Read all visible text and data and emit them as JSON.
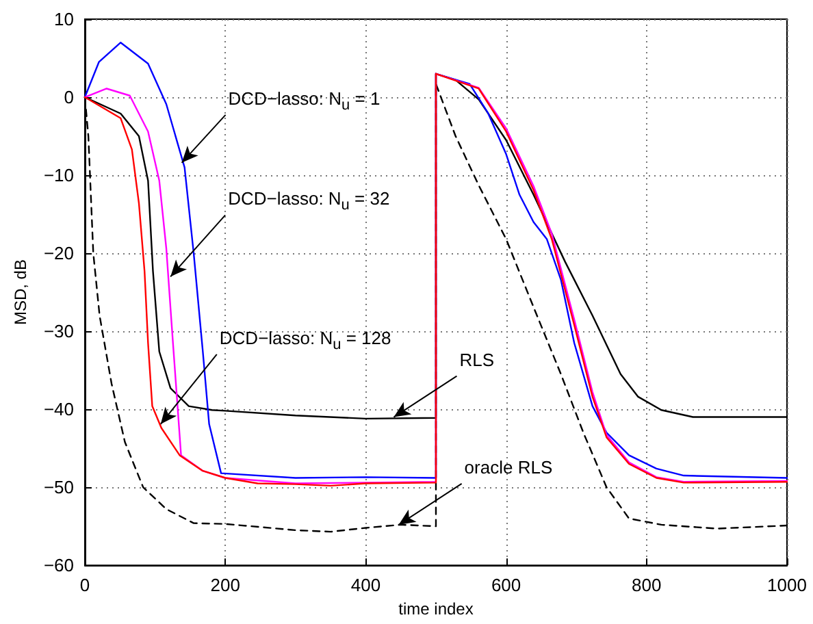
{
  "chart_data": {
    "type": "line",
    "xlabel": "time index",
    "ylabel": "MSD, dB",
    "xlim": [
      0,
      1000
    ],
    "xticks": [
      0,
      200,
      400,
      600,
      800,
      1000
    ],
    "ylim": [
      -60,
      10
    ],
    "yticks": [
      -60,
      -50,
      -40,
      -30,
      -20,
      -10,
      0,
      10
    ],
    "grid": true,
    "marker": "none",
    "series": [
      {
        "color": "#000000",
        "line_style": "dashed",
        "x": [
          0,
          5,
          12,
          21,
          38,
          57,
          83,
          116,
          155,
          200,
          300,
          350,
          400,
          450,
          500,
          500,
          528,
          561,
          600,
          639,
          678,
          710,
          743,
          775,
          821,
          900,
          1000
        ],
        "values": [
          0,
          -5,
          -20,
          -28,
          -36.7,
          -44.2,
          -50,
          -52.8,
          -54.6,
          -54.7,
          -55.5,
          -55.7,
          -55.2,
          -54.8,
          -55,
          1.7,
          -5,
          -11.3,
          -18.2,
          -26.9,
          -35.5,
          -43,
          -50,
          -54,
          -54.8,
          -55.3,
          -54.9
        ]
      },
      {
        "color": "#000000",
        "line_style": "solid",
        "x": [
          0,
          51,
          77,
          90,
          97,
          106,
          122,
          148,
          181,
          200,
          300,
          400,
          500,
          500,
          528,
          561,
          600,
          639,
          684,
          723,
          763,
          788,
          821,
          866,
          1000
        ],
        "values": [
          0,
          -2.1,
          -5,
          -10.7,
          -22.3,
          -32.6,
          -37.3,
          -39.6,
          -40.1,
          -40.2,
          -40.8,
          -41.2,
          -41.1,
          3,
          2.2,
          -0.3,
          -5.5,
          -12.5,
          -21.1,
          -28,
          -35.5,
          -38.4,
          -40.1,
          -41,
          -41
        ]
      },
      {
        "color": "#0000ff",
        "line_style": "solid",
        "x": [
          0,
          20,
          51,
          90,
          116,
          142,
          155,
          168,
          177,
          194,
          300,
          400,
          500,
          500,
          548,
          574,
          600,
          619,
          639,
          658,
          678,
          697,
          723,
          743,
          775,
          814,
          853,
          1000
        ],
        "values": [
          0,
          4.5,
          7,
          4.3,
          -0.9,
          -9,
          -20,
          -32.6,
          -41.9,
          -48.2,
          -48.8,
          -48.7,
          -48.8,
          3,
          1.7,
          -2,
          -7.3,
          -12.5,
          -16,
          -18.2,
          -23.4,
          -31.5,
          -39.6,
          -43,
          -45.9,
          -47.6,
          -48.5,
          -48.8
        ]
      },
      {
        "color": "#ff00ff",
        "line_style": "solid",
        "x": [
          0,
          31,
          64,
          90,
          106,
          116,
          125,
          132,
          137,
          168,
          200,
          300,
          400,
          500,
          500,
          561,
          600,
          639,
          665,
          697,
          723,
          743,
          775,
          814,
          853,
          1000
        ],
        "values": [
          0,
          1.1,
          0.2,
          -4.4,
          -10.7,
          -19.4,
          -30.9,
          -39.6,
          -45.9,
          -47.9,
          -48.8,
          -49.5,
          -49.4,
          -49.3,
          3,
          1.2,
          -4,
          -11.4,
          -17.5,
          -28.5,
          -37.8,
          -43.3,
          -46.8,
          -48.7,
          -49.3,
          -49.2
        ]
      },
      {
        "color": "#ff0000",
        "line_style": "solid",
        "x": [
          0,
          51,
          67,
          77,
          85,
          90,
          96,
          109,
          135,
          168,
          200,
          246,
          300,
          350,
          400,
          500,
          500,
          561,
          600,
          639,
          665,
          697,
          723,
          743,
          775,
          814,
          853,
          1000
        ],
        "values": [
          0,
          -2.7,
          -6.7,
          -13.6,
          -22.3,
          -31.5,
          -39.6,
          -42.4,
          -45.9,
          -47.9,
          -48.8,
          -49.5,
          -49.6,
          -49.8,
          -49.5,
          -49.4,
          3,
          1.1,
          -4.4,
          -11.9,
          -18.2,
          -29.2,
          -38.4,
          -43.6,
          -47,
          -48.8,
          -49.4,
          -49.3
        ]
      }
    ],
    "annotations": [
      {
        "text": "DCD−lasso: N$_{u}$ = 1",
        "x": 138,
        "y": -8.4
      },
      {
        "text": "DCD−lasso: N$_{u}$ = 32",
        "x": 122,
        "y": -23
      },
      {
        "text": "DCD−lasso: N$_{u}$ = 128",
        "x": 108,
        "y": -41.9
      },
      {
        "text": "RLS",
        "x": 440,
        "y": -41
      },
      {
        "text": "oracle RLS",
        "x": 447,
        "y": -54.8
      }
    ]
  }
}
